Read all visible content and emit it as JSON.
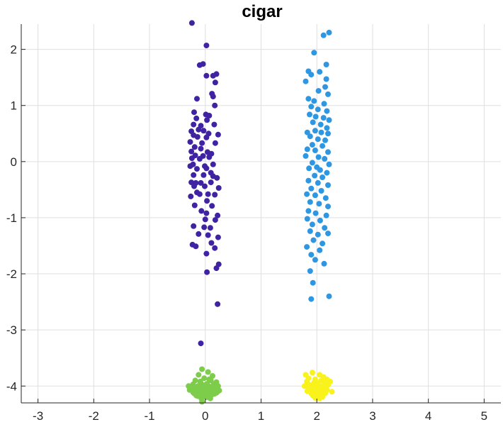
{
  "chart_data": {
    "type": "scatter",
    "title": "cigar",
    "xlabel": "",
    "ylabel": "",
    "xlim": [
      -3.3,
      5.3
    ],
    "ylim": [
      -4.3,
      2.45
    ],
    "xticks": [
      -3,
      -2,
      -1,
      0,
      1,
      2,
      3,
      4,
      5
    ],
    "yticks": [
      -4,
      -3,
      -2,
      -1,
      0,
      1,
      2
    ],
    "grid": true,
    "legend": "none",
    "series": [
      {
        "color": "#3f23a3",
        "points": [
          [
            -0.24,
            2.47
          ],
          [
            0.02,
            2.07
          ],
          [
            -0.1,
            1.72
          ],
          [
            -0.04,
            1.74
          ],
          [
            0.02,
            1.53
          ],
          [
            0.14,
            1.53
          ],
          [
            0.2,
            1.56
          ],
          [
            0.18,
            1.41
          ],
          [
            0.12,
            1.21
          ],
          [
            0.14,
            1.16
          ],
          [
            -0.15,
            1.12
          ],
          [
            0.17,
            1.0
          ],
          [
            -0.2,
            0.88
          ],
          [
            0.01,
            0.84
          ],
          [
            0.07,
            0.82
          ],
          [
            -0.16,
            0.77
          ],
          [
            0.03,
            0.74
          ],
          [
            -0.21,
            0.66
          ],
          [
            -0.08,
            0.64
          ],
          [
            0.16,
            0.66
          ],
          [
            -0.25,
            0.54
          ],
          [
            -0.12,
            0.57
          ],
          [
            -0.03,
            0.55
          ],
          [
            0.06,
            0.5
          ],
          [
            0.23,
            0.48
          ],
          [
            -0.21,
            0.47
          ],
          [
            -0.14,
            0.44
          ],
          [
            0.02,
            0.43
          ],
          [
            -0.27,
            0.35
          ],
          [
            -0.06,
            0.33
          ],
          [
            0.18,
            0.33
          ],
          [
            -0.19,
            0.26
          ],
          [
            -0.08,
            0.23
          ],
          [
            0.04,
            0.17
          ],
          [
            -0.25,
            0.18
          ],
          [
            0.11,
            0.14
          ],
          [
            -0.18,
            0.11
          ],
          [
            -0.24,
            0.06
          ],
          [
            -0.1,
            0.05
          ],
          [
            0.07,
            0.08
          ],
          [
            -0.22,
            -0.05
          ],
          [
            -0.01,
            -0.08
          ],
          [
            0.14,
            -0.05
          ],
          [
            -0.27,
            -0.08
          ],
          [
            -0.15,
            -0.13
          ],
          [
            0.02,
            -0.12
          ],
          [
            0.1,
            -0.2
          ],
          [
            -0.21,
            -0.24
          ],
          [
            -0.03,
            -0.24
          ],
          [
            0.14,
            -0.26
          ],
          [
            0.21,
            -0.29
          ],
          [
            -0.25,
            -0.37
          ],
          [
            -0.17,
            -0.38
          ],
          [
            -0.08,
            -0.38
          ],
          [
            0.1,
            -0.37
          ],
          [
            -0.2,
            -0.44
          ],
          [
            -0.01,
            -0.44
          ],
          [
            0.24,
            -0.47
          ],
          [
            -0.15,
            -0.55
          ],
          [
            0.05,
            -0.58
          ],
          [
            -0.26,
            -0.62
          ],
          [
            -0.1,
            -0.58
          ],
          [
            0.17,
            -0.59
          ],
          [
            0.03,
            -0.7
          ],
          [
            -0.19,
            -0.78
          ],
          [
            0.12,
            -0.79
          ],
          [
            -0.07,
            -0.88
          ],
          [
            0.02,
            -0.92
          ],
          [
            0.22,
            -0.96
          ],
          [
            0.18,
            -1.04
          ],
          [
            -0.21,
            -1.15
          ],
          [
            -0.02,
            -1.17
          ],
          [
            0.09,
            -1.18
          ],
          [
            -0.12,
            -1.29
          ],
          [
            0.05,
            -1.31
          ],
          [
            0.23,
            -1.35
          ],
          [
            -0.23,
            -1.48
          ],
          [
            0.11,
            -1.45
          ],
          [
            0.17,
            -1.54
          ],
          [
            -0.17,
            -1.51
          ],
          [
            0.02,
            -1.64
          ],
          [
            0.24,
            -1.83
          ],
          [
            0.03,
            -1.97
          ],
          [
            0.2,
            -1.9
          ],
          [
            0.22,
            -2.54
          ],
          [
            -0.08,
            -3.24
          ],
          [
            0.0,
            -1.03
          ],
          [
            -0.04,
            0.1
          ]
        ]
      },
      {
        "color": "#2f97e2",
        "points": [
          [
            2.22,
            2.3
          ],
          [
            2.12,
            2.25
          ],
          [
            1.95,
            1.94
          ],
          [
            2.17,
            1.73
          ],
          [
            1.85,
            1.61
          ],
          [
            1.9,
            1.55
          ],
          [
            2.05,
            1.6
          ],
          [
            2.17,
            1.47
          ],
          [
            1.8,
            1.43
          ],
          [
            2.15,
            1.33
          ],
          [
            2.03,
            1.26
          ],
          [
            2.2,
            1.2
          ],
          [
            1.85,
            1.12
          ],
          [
            1.95,
            1.08
          ],
          [
            2.13,
            1.03
          ],
          [
            1.9,
            0.98
          ],
          [
            2.02,
            0.93
          ],
          [
            2.18,
            0.9
          ],
          [
            1.87,
            0.84
          ],
          [
            1.98,
            0.8
          ],
          [
            2.12,
            0.78
          ],
          [
            2.22,
            0.74
          ],
          [
            1.93,
            0.7
          ],
          [
            2.07,
            0.66
          ],
          [
            2.18,
            0.6
          ],
          [
            1.83,
            0.52
          ],
          [
            1.97,
            0.55
          ],
          [
            2.08,
            0.52
          ],
          [
            2.2,
            0.5
          ],
          [
            1.88,
            0.45
          ],
          [
            2.02,
            0.4
          ],
          [
            2.15,
            0.38
          ],
          [
            1.92,
            0.3
          ],
          [
            2.1,
            0.28
          ],
          [
            1.83,
            0.22
          ],
          [
            1.97,
            0.2
          ],
          [
            2.2,
            0.17
          ],
          [
            1.8,
            0.1
          ],
          [
            2.03,
            0.08
          ],
          [
            2.14,
            0.05
          ],
          [
            1.92,
            -0.02
          ],
          [
            2.22,
            -0.05
          ],
          [
            1.86,
            -0.12
          ],
          [
            2.06,
            -0.15
          ],
          [
            2.18,
            -0.2
          ],
          [
            1.96,
            -0.25
          ],
          [
            2.1,
            -0.28
          ],
          [
            1.85,
            -0.34
          ],
          [
            2.02,
            -0.38
          ],
          [
            2.2,
            -0.42
          ],
          [
            1.9,
            -0.48
          ],
          [
            2.08,
            -0.52
          ],
          [
            1.82,
            -0.58
          ],
          [
            1.97,
            -0.6
          ],
          [
            2.16,
            -0.65
          ],
          [
            1.88,
            -0.72
          ],
          [
            2.04,
            -0.75
          ],
          [
            2.2,
            -0.8
          ],
          [
            1.85,
            -0.88
          ],
          [
            1.98,
            -0.92
          ],
          [
            2.17,
            -0.96
          ],
          [
            1.83,
            -1.02
          ],
          [
            2.06,
            -1.05
          ],
          [
            1.92,
            -1.12
          ],
          [
            2.14,
            -1.18
          ],
          [
            1.88,
            -1.24
          ],
          [
            2.02,
            -1.3
          ],
          [
            2.2,
            -1.28
          ],
          [
            1.94,
            -1.4
          ],
          [
            2.1,
            -1.46
          ],
          [
            1.82,
            -1.52
          ],
          [
            2.05,
            -1.58
          ],
          [
            1.9,
            -1.66
          ],
          [
            1.97,
            -1.75
          ],
          [
            2.13,
            -1.82
          ],
          [
            1.88,
            -1.95
          ],
          [
            1.93,
            -2.16
          ],
          [
            2.22,
            -2.4
          ],
          [
            1.9,
            -2.45
          ],
          [
            2.0,
            -0.1
          ]
        ]
      },
      {
        "color": "#7dcc4a",
        "points": [
          [
            -0.06,
            -3.7
          ],
          [
            0.05,
            -3.75
          ],
          [
            -0.12,
            -3.8
          ],
          [
            0.13,
            -3.82
          ],
          [
            -0.02,
            -3.86
          ],
          [
            0.1,
            -3.9
          ],
          [
            -0.18,
            -3.9
          ],
          [
            0.2,
            -3.93
          ],
          [
            -0.08,
            -3.95
          ],
          [
            0.03,
            -3.96
          ],
          [
            -0.22,
            -3.97
          ],
          [
            0.15,
            -3.97
          ],
          [
            -0.3,
            -4.0
          ],
          [
            -0.13,
            -4.0
          ],
          [
            0.06,
            -4.0
          ],
          [
            0.23,
            -4.0
          ],
          [
            -0.25,
            -4.02
          ],
          [
            -0.04,
            -4.02
          ],
          [
            0.12,
            -4.03
          ],
          [
            -0.18,
            -4.04
          ],
          [
            0.0,
            -4.05
          ],
          [
            0.18,
            -4.05
          ],
          [
            -0.1,
            -4.06
          ],
          [
            0.08,
            -4.07
          ],
          [
            -0.28,
            -4.07
          ],
          [
            0.25,
            -4.08
          ],
          [
            -0.15,
            -4.08
          ],
          [
            0.03,
            -4.09
          ],
          [
            -0.05,
            -4.1
          ],
          [
            0.14,
            -4.1
          ],
          [
            -0.22,
            -4.11
          ],
          [
            0.2,
            -4.12
          ],
          [
            -0.1,
            -4.13
          ],
          [
            0.05,
            -4.14
          ],
          [
            -0.02,
            -4.15
          ],
          [
            0.11,
            -4.16
          ],
          [
            -0.16,
            -4.17
          ],
          [
            0.02,
            -4.2
          ],
          [
            -0.07,
            -4.22
          ],
          [
            0.09,
            -4.22
          ],
          [
            -0.13,
            -4.18
          ],
          [
            0.16,
            -4.14
          ],
          [
            -0.06,
            -4.28
          ],
          [
            0.0,
            -3.98
          ],
          [
            -0.2,
            -4.13
          ],
          [
            0.22,
            -4.1
          ],
          [
            -0.09,
            -3.92
          ],
          [
            0.07,
            -3.88
          ]
        ]
      },
      {
        "color": "#f9f21b",
        "points": [
          [
            1.8,
            -3.8
          ],
          [
            1.92,
            -3.76
          ],
          [
            2.05,
            -3.8
          ],
          [
            2.12,
            -3.84
          ],
          [
            1.85,
            -3.86
          ],
          [
            1.97,
            -3.88
          ],
          [
            2.08,
            -3.9
          ],
          [
            2.18,
            -3.88
          ],
          [
            1.82,
            -3.92
          ],
          [
            1.95,
            -3.94
          ],
          [
            2.02,
            -3.95
          ],
          [
            2.15,
            -3.95
          ],
          [
            1.87,
            -3.98
          ],
          [
            2.0,
            -3.99
          ],
          [
            2.1,
            -4.0
          ],
          [
            2.2,
            -3.98
          ],
          [
            1.84,
            -4.02
          ],
          [
            1.93,
            -4.03
          ],
          [
            2.04,
            -4.04
          ],
          [
            2.14,
            -4.05
          ],
          [
            1.88,
            -4.06
          ],
          [
            1.98,
            -4.07
          ],
          [
            2.08,
            -4.08
          ],
          [
            2.18,
            -4.07
          ],
          [
            1.83,
            -4.09
          ],
          [
            1.94,
            -4.1
          ],
          [
            2.03,
            -4.11
          ],
          [
            2.12,
            -4.12
          ],
          [
            1.9,
            -4.13
          ],
          [
            2.0,
            -4.14
          ],
          [
            2.08,
            -4.15
          ],
          [
            2.15,
            -4.13
          ],
          [
            1.93,
            -4.17
          ],
          [
            2.02,
            -4.18
          ],
          [
            2.1,
            -4.19
          ],
          [
            1.97,
            -4.21
          ],
          [
            2.05,
            -4.22
          ],
          [
            2.27,
            -4.1
          ],
          [
            1.78,
            -4.0
          ],
          [
            2.24,
            -3.92
          ]
        ]
      }
    ]
  }
}
